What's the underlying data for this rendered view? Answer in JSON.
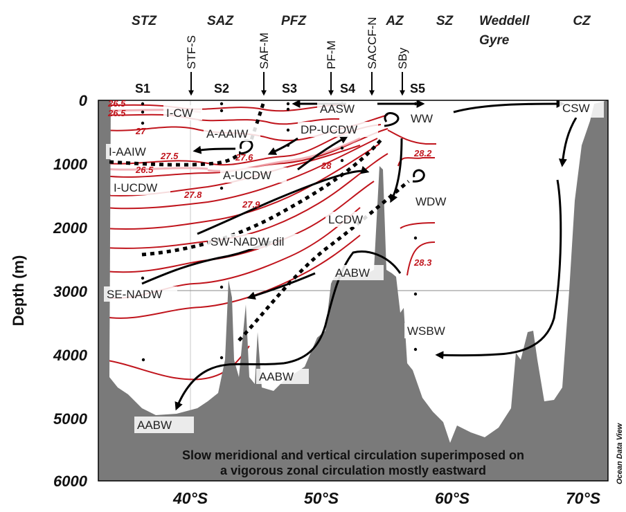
{
  "zones": [
    "STZ",
    "SAZ",
    "PFZ",
    "AZ",
    "SZ",
    "Weddell",
    "Gyre",
    "CZ"
  ],
  "fronts": [
    "STF-S",
    "SAF-M",
    "PF-M",
    "SACCF-N",
    "SBy"
  ],
  "stations": [
    "S1",
    "S2",
    "S3",
    "S4",
    "S5"
  ],
  "y_axis": {
    "label": "Depth (m)",
    "ticks": [
      "0",
      "1000",
      "2000",
      "3000",
      "4000",
      "5000",
      "6000"
    ]
  },
  "x_axis": {
    "ticks": [
      "40°S",
      "50°S",
      "60°S",
      "70°S"
    ]
  },
  "water_masses": {
    "icw": "I-CW",
    "aaaiw": "A-AAIW",
    "iaaiw": "I-AAIW",
    "aucdw": "A-UCDW",
    "iucdw": "I-UCDW",
    "aasw": "AASW",
    "dpucdw": "DP-UCDW",
    "ww": "WW",
    "csw": "CSW",
    "wdw": "WDW",
    "lcdw": "LCDW",
    "swnadw": "SW-NADW dil",
    "aabw_ridge": "AABW",
    "senadw": "SE-NADW",
    "wsbw": "WSBW",
    "aabw_mid": "AABW",
    "aabw_left": "AABW"
  },
  "isopycnals": [
    "26.5",
    "26.5",
    "27",
    "26.5",
    "27.5",
    "27.6",
    "27.8",
    "28",
    "27.9",
    "28.2",
    "28.3"
  ],
  "caption": {
    "line1": "Slow meridional and vertical circulation superimposed on",
    "line2": "a vigorous zonal circulation mostly eastward"
  },
  "credit": "Ocean Data View",
  "colors": {
    "isopycnal": "#c0141c",
    "seafloor": "#7a7a7a",
    "arrows": "#000000"
  }
}
